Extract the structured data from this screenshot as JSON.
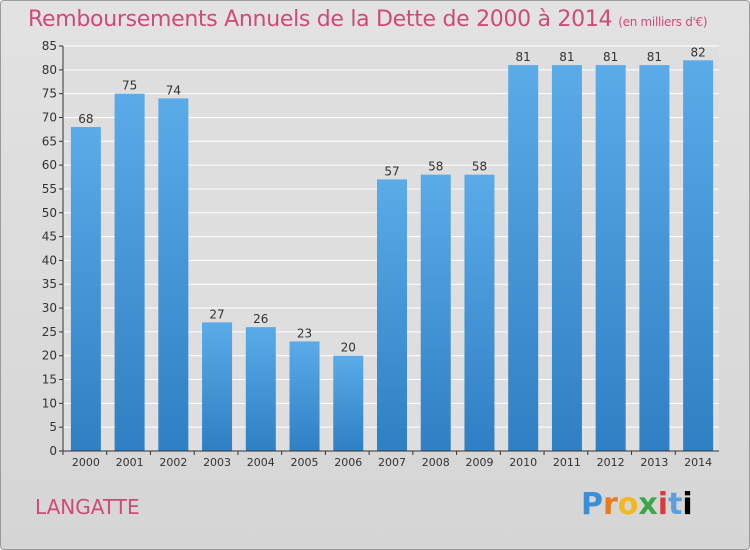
{
  "chart_data": {
    "type": "bar",
    "title": "Remboursements Annuels de la Dette de 2000 à 2014",
    "unit": "(en milliers d'€)",
    "categories": [
      "2000",
      "2001",
      "2002",
      "2003",
      "2004",
      "2005",
      "2006",
      "2007",
      "2008",
      "2009",
      "2010",
      "2011",
      "2012",
      "2013",
      "2014"
    ],
    "values": [
      68,
      75,
      74,
      27,
      26,
      23,
      20,
      57,
      58,
      58,
      81,
      81,
      81,
      81,
      82
    ],
    "yticks": [
      0,
      5,
      10,
      15,
      20,
      25,
      30,
      35,
      40,
      45,
      50,
      55,
      60,
      65,
      70,
      75,
      80,
      85
    ],
    "ylim": [
      0,
      85
    ],
    "xlabel": "",
    "ylabel": "",
    "grid": true
  },
  "commune": "LANGATTE",
  "logo": [
    "P",
    "r",
    "o",
    "x",
    "i",
    "t",
    "i"
  ],
  "colors": {
    "title": "#d04a78",
    "bar_top": "#5aabe8",
    "bar_bottom": "#2f7fc4",
    "grid": "#ffffff",
    "axis": "#333333"
  }
}
